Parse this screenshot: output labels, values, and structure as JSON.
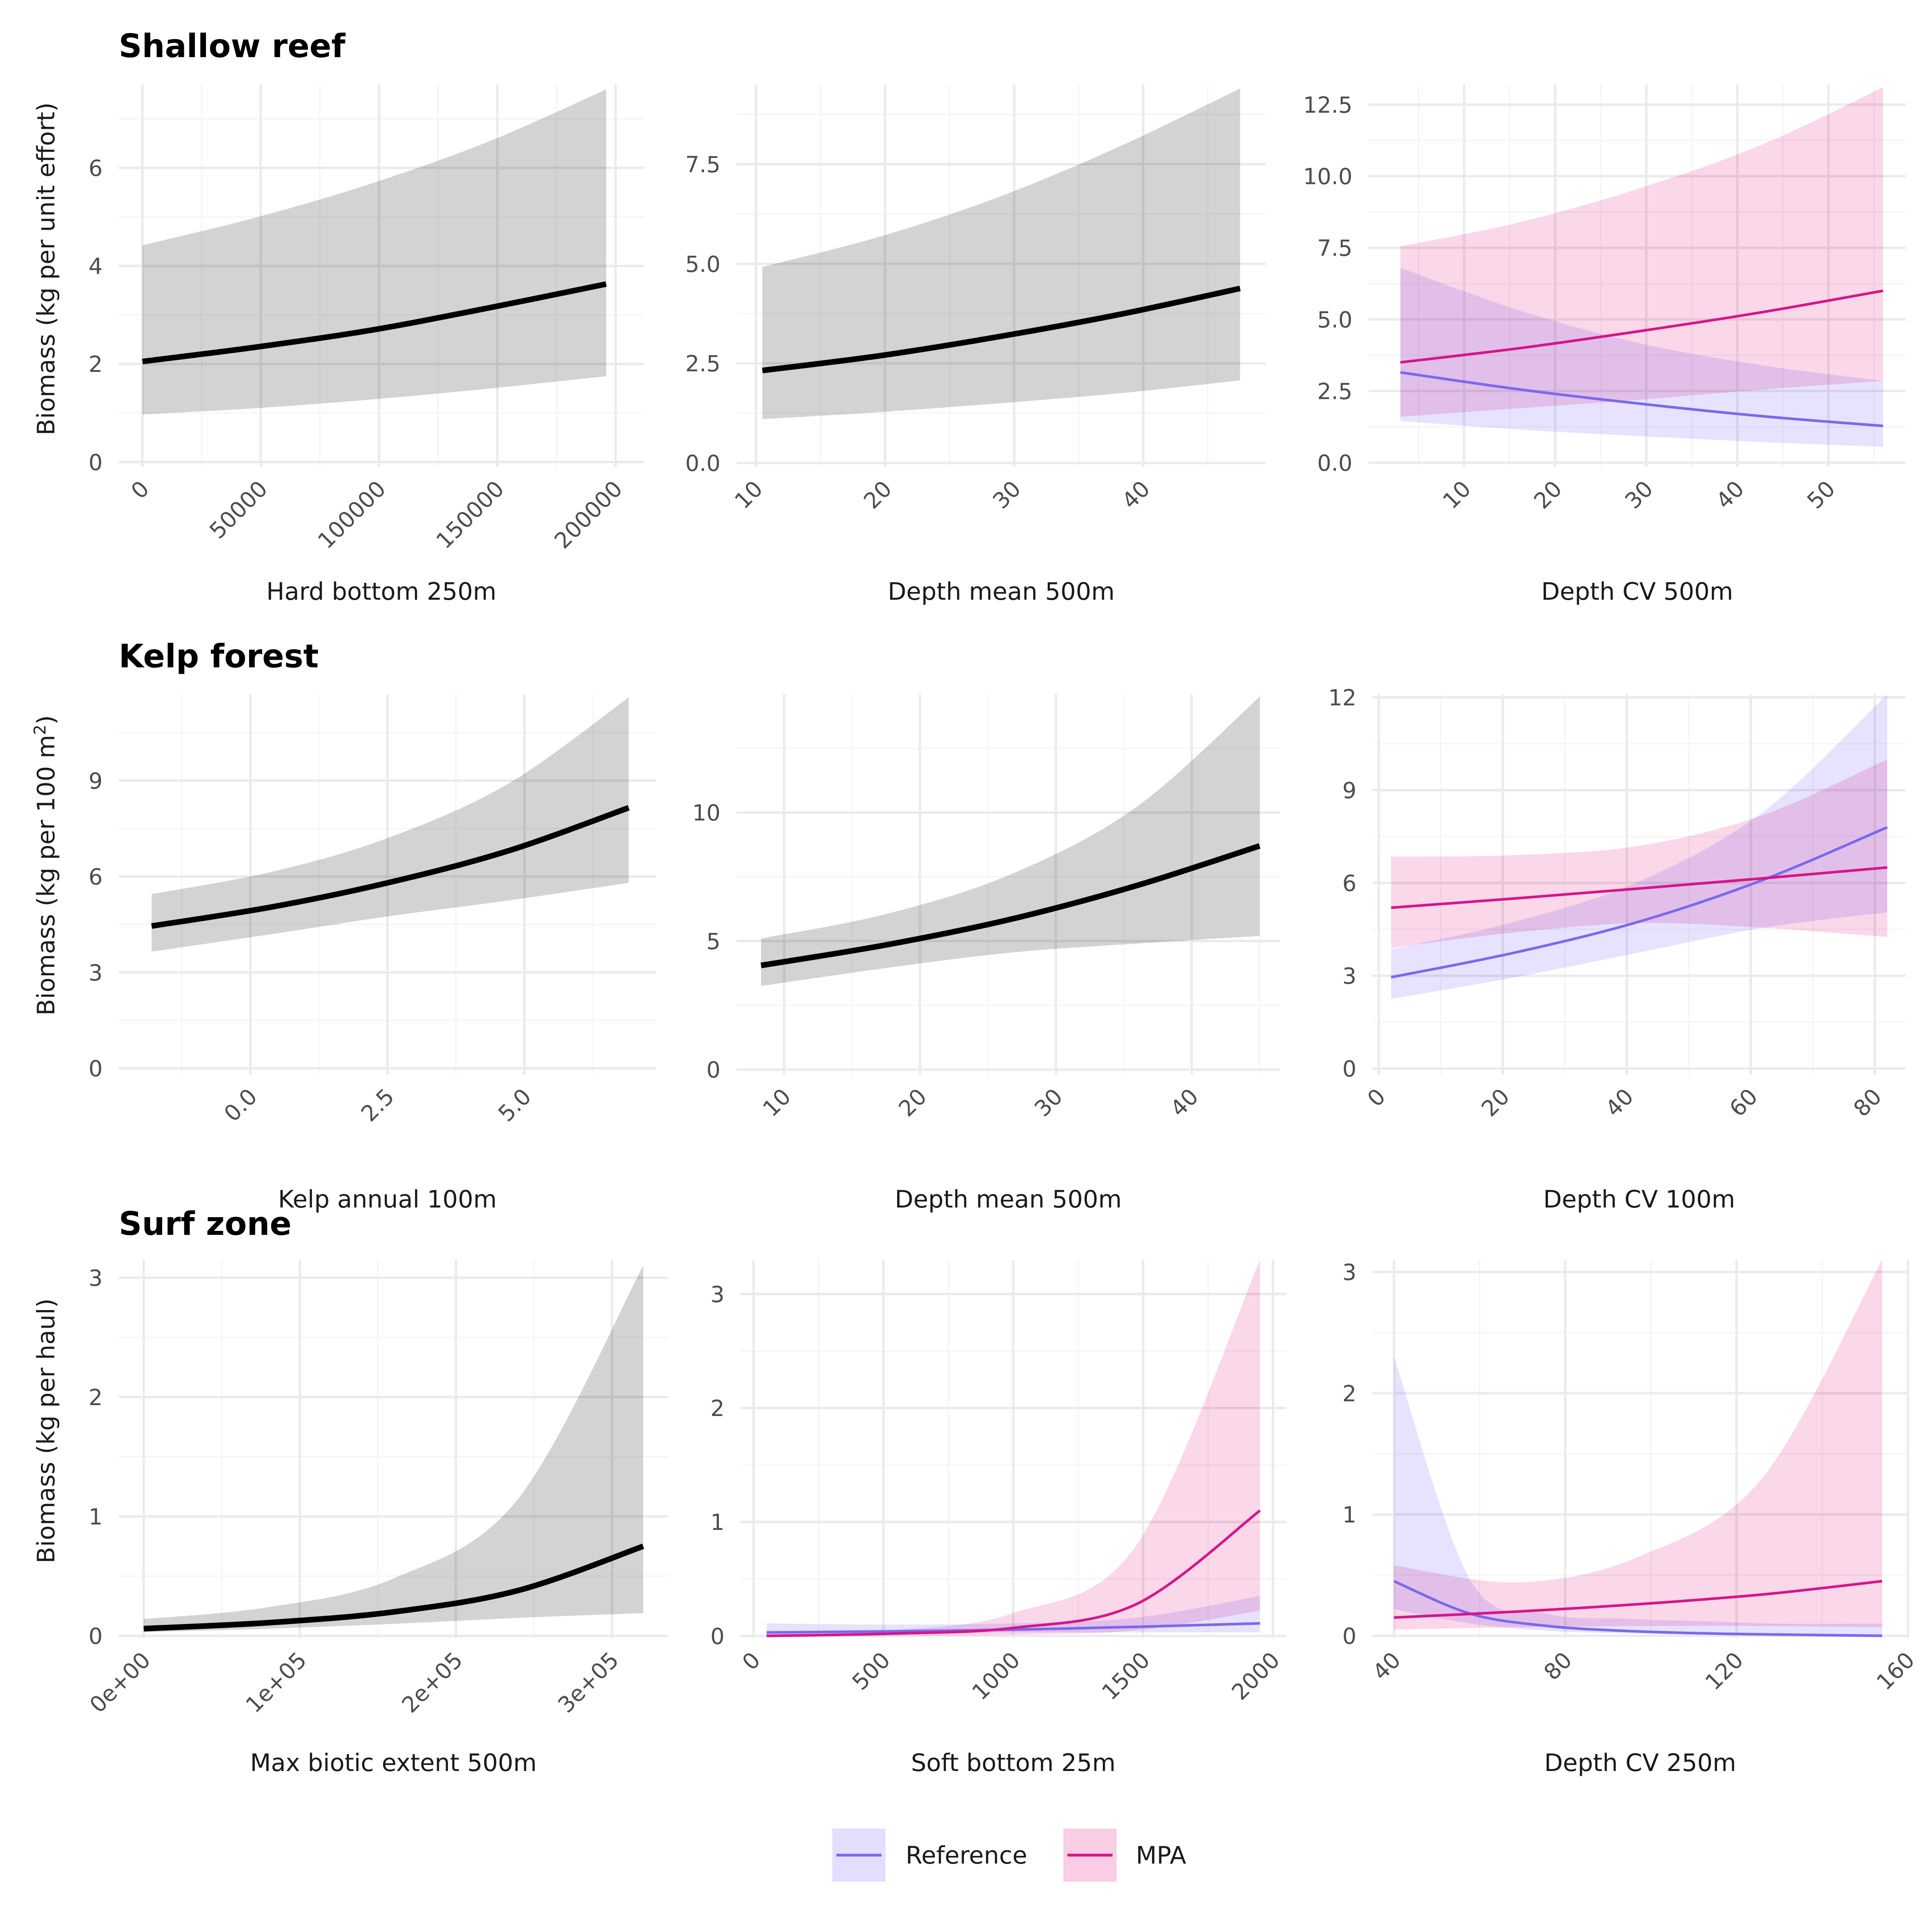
{
  "colors": {
    "overall_line": "#000000",
    "overall_band": "#d3d3d3",
    "reference_line": "#7b68ee",
    "reference_band": "#e3defe",
    "mpa_line": "#d6158a",
    "mpa_band": "#f9cde3",
    "grid_major": "#ebebeb",
    "grid_minor": "#f4f4f4"
  },
  "rows": [
    {
      "title": "Shallow reef",
      "ylabel": "Biomass (kg per unit effort)"
    },
    {
      "title": "Kelp forest",
      "ylabel": "Biomass (kg per 100 m",
      "ylabel_sup": "2",
      "ylabel_end": ")"
    },
    {
      "title": "Surf zone",
      "ylabel": "Biomass (kg per haul)"
    }
  ],
  "legend": {
    "items": [
      {
        "label": "Reference",
        "key": "reference"
      },
      {
        "label": "MPA",
        "key": "mpa"
      }
    ]
  },
  "chart_data": [
    {
      "type": "line",
      "row": "Shallow reef",
      "xlabel": "Hard bottom 250m",
      "ylabel": "Biomass (kg per unit effort)",
      "xlim": [
        -10000,
        212000
      ],
      "ylim": [
        -0.1,
        7.7
      ],
      "xticks": [
        0,
        50000,
        100000,
        150000,
        200000
      ],
      "xtick_labels": [
        "0",
        "50000",
        "100000",
        "150000",
        "200000"
      ],
      "yticks": [
        0,
        2,
        4,
        6
      ],
      "ytick_labels": [
        "0",
        "2",
        "4",
        "6"
      ],
      "grid": true,
      "series": [
        {
          "key": "overall",
          "x": [
            0,
            49000,
            98000,
            147000,
            196000
          ],
          "y": [
            2.05,
            2.35,
            2.7,
            3.15,
            3.63
          ],
          "lower": [
            0.97,
            1.1,
            1.28,
            1.5,
            1.75
          ],
          "upper": [
            4.42,
            5.0,
            5.7,
            6.55,
            7.6
          ]
        }
      ]
    },
    {
      "type": "line",
      "row": "Shallow reef",
      "xlabel": "Depth mean 500m",
      "ylabel": "",
      "xlim": [
        8.5,
        49.5
      ],
      "ylim": [
        -0.1,
        9.5
      ],
      "xticks": [
        10,
        20,
        30,
        40
      ],
      "xtick_labels": [
        "10",
        "20",
        "30",
        "40"
      ],
      "yticks": [
        0,
        2.5,
        5,
        7.5
      ],
      "ytick_labels": [
        "0.0",
        "2.5",
        "5.0",
        "7.5"
      ],
      "grid": true,
      "series": [
        {
          "key": "overall",
          "x": [
            10.5,
            19.8,
            29,
            38.2,
            47.5
          ],
          "y": [
            2.32,
            2.7,
            3.18,
            3.73,
            4.38
          ],
          "lower": [
            1.1,
            1.28,
            1.5,
            1.75,
            2.07
          ],
          "upper": [
            4.92,
            5.7,
            6.7,
            7.95,
            9.4
          ]
        }
      ]
    },
    {
      "type": "line",
      "row": "Shallow reef",
      "xlabel": "Depth CV 500m",
      "ylabel": "",
      "xlim": [
        -0.5,
        58.5
      ],
      "ylim": [
        -0.15,
        13.2
      ],
      "xticks": [
        10,
        20,
        30,
        40,
        50
      ],
      "xtick_labels": [
        "10",
        "20",
        "30",
        "40",
        "50"
      ],
      "yticks": [
        0,
        2.5,
        5,
        7.5,
        10,
        12.5
      ],
      "ytick_labels": [
        "0.0",
        "2.5",
        "5.0",
        "7.5",
        "10.0",
        "12.5"
      ],
      "grid": true,
      "series": [
        {
          "key": "reference",
          "name": "Reference",
          "x": [
            3,
            16.2,
            29.5,
            42.7,
            56
          ],
          "y": [
            3.15,
            2.55,
            2.05,
            1.62,
            1.28
          ],
          "lower": [
            1.45,
            1.15,
            0.92,
            0.72,
            0.55
          ],
          "upper": [
            6.8,
            5.3,
            4.15,
            3.4,
            2.85
          ]
        },
        {
          "key": "mpa",
          "name": "MPA",
          "x": [
            3,
            16.2,
            29.5,
            42.7,
            56
          ],
          "y": [
            3.5,
            4.0,
            4.6,
            5.25,
            6.0
          ],
          "lower": [
            1.6,
            1.9,
            2.2,
            2.55,
            2.85
          ],
          "upper": [
            7.55,
            8.4,
            9.6,
            11.1,
            13.1
          ]
        }
      ]
    },
    {
      "type": "line",
      "row": "Kelp forest",
      "xlabel": "Kelp annual 100m",
      "ylabel": "Biomass (kg per 100 m2)",
      "xlim": [
        -2.4,
        7.4
      ],
      "ylim": [
        -0.2,
        11.7
      ],
      "xticks": [
        0,
        2.5,
        5
      ],
      "xtick_labels": [
        "0.0",
        "2.5",
        "5.0"
      ],
      "yticks": [
        0,
        3,
        6,
        9
      ],
      "ytick_labels": [
        "0",
        "3",
        "6",
        "9"
      ],
      "grid": true,
      "series": [
        {
          "key": "overall",
          "x": [
            -1.8,
            0.4,
            2.5,
            4.7,
            6.9
          ],
          "y": [
            4.45,
            5.05,
            5.8,
            6.8,
            8.15
          ],
          "lower": [
            3.65,
            4.2,
            4.75,
            5.25,
            5.8
          ],
          "upper": [
            5.45,
            6.15,
            7.2,
            8.9,
            11.6
          ]
        }
      ]
    },
    {
      "type": "line",
      "row": "Kelp forest",
      "xlabel": "Depth mean 500m",
      "ylabel": "",
      "xlim": [
        6.5,
        46.5
      ],
      "ylim": [
        -0.2,
        14.6
      ],
      "xticks": [
        10,
        20,
        30,
        40
      ],
      "xtick_labels": [
        "10",
        "20",
        "30",
        "40"
      ],
      "yticks": [
        0,
        5,
        10
      ],
      "ytick_labels": [
        "0",
        "5",
        "10"
      ],
      "grid": true,
      "series": [
        {
          "key": "overall",
          "x": [
            8.3,
            17.5,
            26.7,
            35.9,
            45
          ],
          "y": [
            4.05,
            4.85,
            5.85,
            7.15,
            8.7
          ],
          "lower": [
            3.25,
            3.95,
            4.55,
            4.9,
            5.2
          ],
          "upper": [
            5.1,
            6.05,
            7.6,
            10.2,
            14.5
          ]
        }
      ]
    },
    {
      "type": "line",
      "row": "Kelp forest",
      "xlabel": "Depth CV 100m",
      "ylabel": "",
      "xlim": [
        -1,
        85
      ],
      "ylim": [
        -0.2,
        12.1
      ],
      "xticks": [
        0,
        20,
        40,
        60,
        80
      ],
      "xtick_labels": [
        "0",
        "20",
        "40",
        "60",
        "80"
      ],
      "yticks": [
        0,
        3,
        6,
        9,
        12
      ],
      "ytick_labels": [
        "0",
        "3",
        "6",
        "9",
        "12"
      ],
      "grid": true,
      "series": [
        {
          "key": "reference",
          "name": "Reference",
          "x": [
            2,
            22,
            42,
            62,
            82
          ],
          "y": [
            2.95,
            3.75,
            4.75,
            6.1,
            7.8
          ],
          "lower": [
            2.25,
            2.95,
            3.75,
            4.55,
            5.05
          ],
          "upper": [
            3.85,
            4.75,
            6.05,
            8.3,
            12.1
          ]
        },
        {
          "key": "mpa",
          "name": "MPA",
          "x": [
            2,
            22,
            42,
            62,
            82
          ],
          "y": [
            5.2,
            5.5,
            5.82,
            6.15,
            6.5
          ],
          "lower": [
            3.9,
            4.4,
            4.7,
            4.55,
            4.25
          ],
          "upper": [
            6.85,
            6.9,
            7.2,
            8.2,
            10.0
          ]
        }
      ]
    },
    {
      "type": "line",
      "row": "Surf zone",
      "xlabel": "Max biotic extent 500m",
      "ylabel": "Biomass (kg per haul)",
      "xlim": [
        -16000,
        336000
      ],
      "ylim": [
        -0.02,
        3.15
      ],
      "xticks": [
        0,
        100000,
        200000,
        300000
      ],
      "xtick_labels": [
        "0e+00",
        "1e+05",
        "2e+05",
        "3e+05"
      ],
      "yticks": [
        0,
        1,
        2,
        3
      ],
      "ytick_labels": [
        "0",
        "1",
        "2",
        "3"
      ],
      "grid": true,
      "series": [
        {
          "key": "overall",
          "x": [
            0,
            80000,
            160000,
            240000,
            320000
          ],
          "y": [
            0.06,
            0.11,
            0.2,
            0.38,
            0.75
          ],
          "lower": [
            0.03,
            0.06,
            0.1,
            0.15,
            0.19
          ],
          "upper": [
            0.14,
            0.24,
            0.48,
            1.15,
            3.1
          ]
        }
      ]
    },
    {
      "type": "line",
      "row": "Surf zone",
      "xlabel": "Soft bottom 25m",
      "ylabel": "",
      "xlim": [
        -50,
        2050
      ],
      "ylim": [
        -0.02,
        3.3
      ],
      "xticks": [
        0,
        500,
        1000,
        1500,
        2000
      ],
      "xtick_labels": [
        "0",
        "500",
        "1000",
        "1500",
        "2000"
      ],
      "yticks": [
        0,
        1,
        2,
        3
      ],
      "ytick_labels": [
        "0",
        "1",
        "2",
        "3"
      ],
      "grid": true,
      "series": [
        {
          "key": "reference",
          "name": "Reference",
          "x": [
            50,
            525,
            1000,
            1475,
            1950
          ],
          "y": [
            0.03,
            0.04,
            0.055,
            0.08,
            0.11
          ],
          "lower": [
            0.01,
            0.02,
            0.03,
            0.03,
            0.03
          ],
          "upper": [
            0.11,
            0.1,
            0.11,
            0.16,
            0.35
          ]
        },
        {
          "key": "mpa",
          "name": "MPA",
          "x": [
            50,
            525,
            1000,
            1475,
            1950
          ],
          "y": [
            0.0,
            0.02,
            0.07,
            0.28,
            1.1
          ],
          "lower": [
            0.0,
            0.0,
            0.01,
            0.05,
            0.22
          ],
          "upper": [
            0.02,
            0.05,
            0.2,
            0.8,
            3.3
          ]
        }
      ]
    },
    {
      "type": "line",
      "row": "Surf zone",
      "xlabel": "Depth CV 250m",
      "ylabel": "",
      "xlim": [
        35,
        160
      ],
      "ylim": [
        -0.02,
        3.1
      ],
      "xticks": [
        40,
        80,
        120,
        160
      ],
      "xtick_labels": [
        "40",
        "80",
        "120",
        "160"
      ],
      "yticks": [
        0,
        1,
        2,
        3
      ],
      "ytick_labels": [
        "0",
        "1",
        "2",
        "3"
      ],
      "grid": true,
      "series": [
        {
          "key": "reference",
          "name": "Reference",
          "x": [
            40,
            58,
            76,
            94,
            112,
            130,
            154
          ],
          "y": [
            0.45,
            0.18,
            0.08,
            0.04,
            0.02,
            0.01,
            0.0
          ],
          "lower": [
            0.22,
            0.1,
            0.04,
            0.02,
            0.01,
            0.0,
            0.0
          ],
          "upper": [
            2.3,
            0.45,
            0.18,
            0.14,
            0.12,
            0.1,
            0.1
          ]
        },
        {
          "key": "mpa",
          "name": "MPA",
          "x": [
            40,
            69,
            97,
            126,
            154
          ],
          "y": [
            0.15,
            0.2,
            0.26,
            0.34,
            0.45
          ],
          "lower": [
            0.05,
            0.07,
            0.08,
            0.08,
            0.07
          ],
          "upper": [
            0.58,
            0.44,
            0.65,
            1.3,
            3.1
          ]
        }
      ]
    }
  ]
}
